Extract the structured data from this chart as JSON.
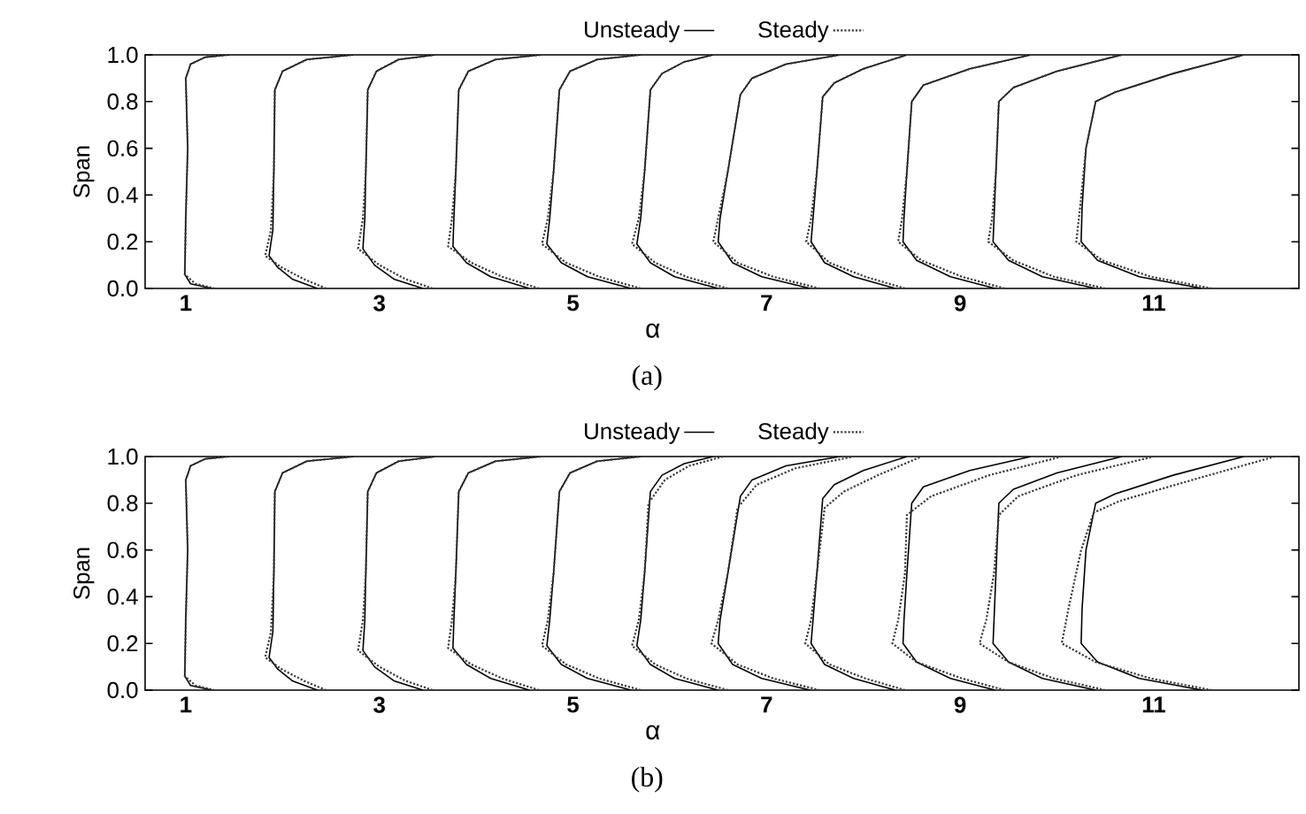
{
  "chart_data": [
    {
      "type": "line",
      "xlabel": "α",
      "ylabel": "Span",
      "annotations": [
        "(a)"
      ],
      "xlim": [
        0.58,
        12.5
      ],
      "ylim": [
        0,
        1
      ],
      "xticks": [
        1,
        3,
        5,
        7,
        9,
        11
      ],
      "yticks": [
        {
          "value": 0,
          "label": "0.0"
        },
        {
          "value": 0.2,
          "label": "0.2"
        },
        {
          "value": 0.4,
          "label": "0.4"
        },
        {
          "value": 0.6,
          "label": "0.6"
        },
        {
          "value": 0.8,
          "label": "0.8"
        },
        {
          "value": 1,
          "label": "1.0"
        }
      ],
      "legend": "top",
      "series": [
        {
          "name": "Unsteady",
          "color": "#000000",
          "line_style": "solid",
          "x": [
            1.27,
            1.05,
            0.99,
            1.0,
            1.02,
            1.0,
            1.05,
            1.2,
            1.45,
            null,
            2.36,
            2.1,
            1.95,
            1.86,
            1.9,
            1.91,
            1.92,
            2.0,
            2.25,
            2.73,
            null,
            3.45,
            3.15,
            2.95,
            2.83,
            2.85,
            2.86,
            2.88,
            2.97,
            3.2,
            3.58,
            null,
            4.55,
            4.15,
            3.9,
            3.76,
            3.77,
            3.79,
            3.82,
            3.92,
            4.2,
            4.67,
            null,
            5.6,
            5.15,
            4.88,
            4.73,
            4.76,
            4.8,
            4.86,
            4.97,
            5.25,
            5.7,
            null,
            6.5,
            6.05,
            5.8,
            5.66,
            5.7,
            5.74,
            5.8,
            5.92,
            6.15,
            6.45,
            null,
            7.45,
            6.95,
            6.65,
            6.5,
            6.52,
            6.6,
            6.73,
            6.85,
            7.2,
            7.76,
            null,
            8.33,
            7.9,
            7.6,
            7.46,
            7.48,
            7.52,
            7.58,
            7.7,
            8.0,
            8.45,
            null,
            9.36,
            8.9,
            8.55,
            8.41,
            8.42,
            8.45,
            8.5,
            8.62,
            9.1,
            9.73,
            null,
            10.4,
            9.85,
            9.5,
            9.34,
            9.35,
            9.37,
            9.4,
            9.55,
            10.0,
            10.67,
            null,
            11.5,
            10.85,
            10.42,
            10.25,
            10.26,
            10.3,
            10.4,
            10.6,
            11.2,
            11.93
          ],
          "values": [
            0,
            0.02,
            0.06,
            0.3,
            0.6,
            0.9,
            0.96,
            0.99,
            1.0,
            null,
            0,
            0.04,
            0.09,
            0.14,
            0.25,
            0.5,
            0.85,
            0.93,
            0.98,
            1.0,
            null,
            0,
            0.04,
            0.1,
            0.17,
            0.3,
            0.5,
            0.85,
            0.93,
            0.98,
            1.0,
            null,
            0,
            0.05,
            0.11,
            0.18,
            0.3,
            0.5,
            0.85,
            0.93,
            0.98,
            1.0,
            null,
            0,
            0.05,
            0.11,
            0.19,
            0.3,
            0.5,
            0.85,
            0.93,
            0.98,
            1.0,
            null,
            0,
            0.05,
            0.11,
            0.19,
            0.3,
            0.5,
            0.85,
            0.92,
            0.97,
            1.0,
            null,
            0,
            0.05,
            0.11,
            0.2,
            0.3,
            0.5,
            0.83,
            0.9,
            0.96,
            1.0,
            null,
            0,
            0.05,
            0.11,
            0.2,
            0.3,
            0.5,
            0.82,
            0.88,
            0.94,
            1.0,
            null,
            0,
            0.05,
            0.12,
            0.2,
            0.3,
            0.5,
            0.8,
            0.87,
            0.94,
            1.0,
            null,
            0,
            0.05,
            0.12,
            0.2,
            0.3,
            0.5,
            0.8,
            0.86,
            0.93,
            1.0,
            null,
            0,
            0.05,
            0.12,
            0.2,
            0.35,
            0.6,
            0.8,
            0.84,
            0.92,
            1.0
          ]
        },
        {
          "name": "Steady",
          "color": "#3a3a3a",
          "line_style": "dotted",
          "x": [
            1.3,
            1.1,
            0.99,
            1.0,
            1.02,
            1.0,
            1.05,
            1.2,
            1.45,
            null,
            2.45,
            2.22,
            1.99,
            1.82,
            1.88,
            1.91,
            1.92,
            2.0,
            2.25,
            2.73,
            null,
            3.55,
            3.27,
            3.0,
            2.78,
            2.83,
            2.86,
            2.88,
            2.97,
            3.2,
            3.58,
            null,
            4.65,
            4.27,
            3.95,
            3.71,
            3.75,
            3.79,
            3.82,
            3.92,
            4.2,
            4.67,
            null,
            5.7,
            5.27,
            4.93,
            4.68,
            4.74,
            4.8,
            4.86,
            4.97,
            5.25,
            5.7,
            null,
            6.6,
            6.17,
            5.85,
            5.61,
            5.68,
            5.74,
            5.8,
            5.92,
            6.15,
            6.45,
            null,
            7.55,
            7.07,
            6.7,
            6.45,
            6.5,
            6.6,
            6.73,
            6.85,
            7.2,
            7.76,
            null,
            8.43,
            8.02,
            7.65,
            7.41,
            7.46,
            7.52,
            7.58,
            7.7,
            8.0,
            8.45,
            null,
            9.46,
            9.02,
            8.6,
            8.36,
            8.4,
            8.45,
            8.5,
            8.62,
            9.1,
            9.73,
            null,
            10.5,
            9.97,
            9.55,
            9.29,
            9.33,
            9.37,
            9.4,
            9.55,
            10.0,
            10.67,
            null,
            11.6,
            10.97,
            10.47,
            10.2,
            10.24,
            10.3,
            10.4,
            10.6,
            11.2,
            11.93
          ],
          "values": [
            0,
            0.02,
            0.06,
            0.3,
            0.6,
            0.9,
            0.96,
            0.99,
            1.0,
            null,
            0,
            0.04,
            0.09,
            0.14,
            0.25,
            0.5,
            0.85,
            0.93,
            0.98,
            1.0,
            null,
            0,
            0.04,
            0.1,
            0.17,
            0.3,
            0.5,
            0.85,
            0.93,
            0.98,
            1.0,
            null,
            0,
            0.05,
            0.11,
            0.18,
            0.3,
            0.5,
            0.85,
            0.93,
            0.98,
            1.0,
            null,
            0,
            0.05,
            0.11,
            0.19,
            0.3,
            0.5,
            0.85,
            0.93,
            0.98,
            1.0,
            null,
            0,
            0.05,
            0.11,
            0.19,
            0.3,
            0.5,
            0.85,
            0.92,
            0.97,
            1.0,
            null,
            0,
            0.05,
            0.11,
            0.2,
            0.3,
            0.5,
            0.83,
            0.9,
            0.96,
            1.0,
            null,
            0,
            0.05,
            0.11,
            0.2,
            0.3,
            0.5,
            0.82,
            0.88,
            0.94,
            1.0,
            null,
            0,
            0.05,
            0.12,
            0.2,
            0.3,
            0.5,
            0.8,
            0.87,
            0.94,
            1.0,
            null,
            0,
            0.05,
            0.12,
            0.2,
            0.3,
            0.5,
            0.8,
            0.86,
            0.93,
            1.0,
            null,
            0,
            0.05,
            0.12,
            0.2,
            0.35,
            0.6,
            0.8,
            0.84,
            0.92,
            1.0
          ]
        }
      ]
    },
    {
      "type": "line",
      "xlabel": "α",
      "ylabel": "Span",
      "annotations": [
        "(b)"
      ],
      "xlim": [
        0.58,
        12.5
      ],
      "ylim": [
        0,
        1
      ],
      "xticks": [
        1,
        3,
        5,
        7,
        9,
        11
      ],
      "yticks": [
        {
          "value": 0,
          "label": "0.0"
        },
        {
          "value": 0.2,
          "label": "0.2"
        },
        {
          "value": 0.4,
          "label": "0.4"
        },
        {
          "value": 0.6,
          "label": "0.6"
        },
        {
          "value": 0.8,
          "label": "0.8"
        },
        {
          "value": 1,
          "label": "1.0"
        }
      ],
      "legend": "top",
      "series": [
        {
          "name": "Unsteady",
          "color": "#000000",
          "line_style": "solid",
          "x": [
            1.27,
            1.05,
            0.99,
            1.0,
            1.02,
            1.0,
            1.05,
            1.2,
            1.45,
            null,
            2.36,
            2.1,
            1.95,
            1.86,
            1.9,
            1.91,
            1.92,
            2.0,
            2.25,
            2.73,
            null,
            3.45,
            3.15,
            2.95,
            2.83,
            2.85,
            2.86,
            2.88,
            2.97,
            3.2,
            3.58,
            null,
            4.55,
            4.15,
            3.9,
            3.76,
            3.77,
            3.79,
            3.82,
            3.92,
            4.2,
            4.67,
            null,
            5.6,
            5.15,
            4.88,
            4.73,
            4.76,
            4.8,
            4.86,
            4.97,
            5.25,
            5.7,
            null,
            6.5,
            6.05,
            5.8,
            5.66,
            5.7,
            5.74,
            5.8,
            5.92,
            6.15,
            6.45,
            null,
            7.45,
            6.95,
            6.65,
            6.5,
            6.52,
            6.6,
            6.73,
            6.85,
            7.2,
            7.76,
            null,
            8.33,
            7.9,
            7.6,
            7.46,
            7.48,
            7.52,
            7.58,
            7.7,
            8.0,
            8.45,
            null,
            9.36,
            8.9,
            8.55,
            8.41,
            8.42,
            8.45,
            8.5,
            8.62,
            9.1,
            9.73,
            null,
            10.4,
            9.85,
            9.5,
            9.34,
            9.35,
            9.37,
            9.4,
            9.55,
            10.0,
            10.67,
            null,
            11.5,
            10.85,
            10.42,
            10.25,
            10.26,
            10.3,
            10.4,
            10.6,
            11.2,
            11.93
          ],
          "values": [
            0,
            0.02,
            0.06,
            0.3,
            0.6,
            0.9,
            0.96,
            0.99,
            1.0,
            null,
            0,
            0.04,
            0.09,
            0.14,
            0.25,
            0.5,
            0.85,
            0.93,
            0.98,
            1.0,
            null,
            0,
            0.04,
            0.1,
            0.17,
            0.3,
            0.5,
            0.85,
            0.93,
            0.98,
            1.0,
            null,
            0,
            0.05,
            0.11,
            0.18,
            0.3,
            0.5,
            0.85,
            0.93,
            0.98,
            1.0,
            null,
            0,
            0.05,
            0.11,
            0.19,
            0.3,
            0.5,
            0.85,
            0.93,
            0.98,
            1.0,
            null,
            0,
            0.05,
            0.11,
            0.19,
            0.3,
            0.5,
            0.85,
            0.92,
            0.97,
            1.0,
            null,
            0,
            0.05,
            0.11,
            0.2,
            0.3,
            0.5,
            0.83,
            0.9,
            0.96,
            1.0,
            null,
            0,
            0.05,
            0.11,
            0.2,
            0.3,
            0.5,
            0.82,
            0.88,
            0.94,
            1.0,
            null,
            0,
            0.05,
            0.12,
            0.2,
            0.3,
            0.5,
            0.8,
            0.87,
            0.94,
            1.0,
            null,
            0,
            0.05,
            0.12,
            0.2,
            0.3,
            0.5,
            0.8,
            0.86,
            0.93,
            1.0,
            null,
            0,
            0.05,
            0.12,
            0.2,
            0.35,
            0.6,
            0.8,
            0.84,
            0.92,
            1.0
          ]
        },
        {
          "name": "Steady",
          "color": "#3a3a3a",
          "line_style": "dotted",
          "x": [
            1.3,
            1.1,
            0.99,
            1.0,
            1.02,
            1.0,
            1.05,
            1.2,
            1.45,
            null,
            2.45,
            2.22,
            1.99,
            1.82,
            1.88,
            1.91,
            1.92,
            2.0,
            2.25,
            2.73,
            null,
            3.55,
            3.27,
            3.0,
            2.78,
            2.83,
            2.86,
            2.88,
            2.97,
            3.2,
            3.58,
            null,
            4.65,
            4.27,
            3.95,
            3.71,
            3.75,
            3.79,
            3.82,
            3.92,
            4.2,
            4.67,
            null,
            5.7,
            5.27,
            4.93,
            4.68,
            4.74,
            4.8,
            4.86,
            4.97,
            5.25,
            5.7,
            null,
            6.6,
            6.17,
            5.85,
            5.61,
            5.68,
            5.74,
            5.78,
            5.95,
            6.2,
            6.55,
            null,
            7.55,
            7.07,
            6.7,
            6.43,
            6.5,
            6.6,
            6.7,
            6.9,
            7.3,
            7.9,
            null,
            8.43,
            8.02,
            7.65,
            7.4,
            7.46,
            7.52,
            7.6,
            7.8,
            8.15,
            8.6,
            null,
            9.46,
            9.02,
            8.55,
            8.3,
            8.36,
            8.43,
            8.45,
            8.7,
            9.3,
            10.05,
            null,
            10.5,
            9.97,
            9.5,
            9.2,
            9.27,
            9.35,
            9.4,
            9.6,
            10.2,
            11.0,
            null,
            11.6,
            10.97,
            10.4,
            10.05,
            10.12,
            10.25,
            10.38,
            10.65,
            11.4,
            12.25
          ],
          "values": [
            0,
            0.02,
            0.06,
            0.3,
            0.6,
            0.9,
            0.96,
            0.99,
            1.0,
            null,
            0,
            0.04,
            0.09,
            0.14,
            0.25,
            0.5,
            0.85,
            0.93,
            0.98,
            1.0,
            null,
            0,
            0.04,
            0.1,
            0.17,
            0.3,
            0.5,
            0.85,
            0.93,
            0.98,
            1.0,
            null,
            0,
            0.05,
            0.11,
            0.18,
            0.3,
            0.5,
            0.85,
            0.93,
            0.98,
            1.0,
            null,
            0,
            0.05,
            0.11,
            0.19,
            0.3,
            0.5,
            0.85,
            0.93,
            0.98,
            1.0,
            null,
            0,
            0.05,
            0.11,
            0.19,
            0.3,
            0.5,
            0.8,
            0.9,
            0.96,
            1.0,
            null,
            0,
            0.05,
            0.11,
            0.2,
            0.3,
            0.5,
            0.78,
            0.88,
            0.95,
            1.0,
            null,
            0,
            0.05,
            0.11,
            0.2,
            0.3,
            0.5,
            0.78,
            0.85,
            0.92,
            1.0,
            null,
            0,
            0.05,
            0.12,
            0.2,
            0.3,
            0.5,
            0.75,
            0.83,
            0.92,
            1.0,
            null,
            0,
            0.05,
            0.12,
            0.2,
            0.3,
            0.5,
            0.75,
            0.83,
            0.92,
            1.0,
            null,
            0,
            0.05,
            0.12,
            0.2,
            0.35,
            0.6,
            0.76,
            0.81,
            0.9,
            1.0
          ]
        }
      ]
    }
  ]
}
